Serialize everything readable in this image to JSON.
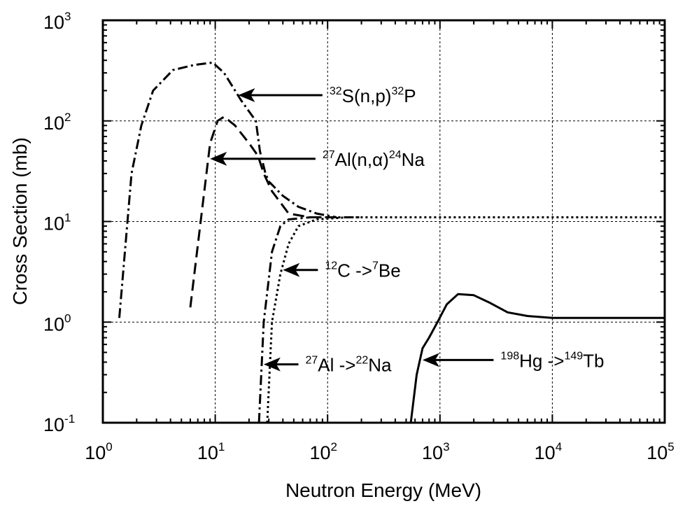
{
  "chart_data": {
    "type": "line",
    "xlabel": "Neutron Energy (MeV)",
    "ylabel": "Cross Section (mb)",
    "xscale": "log",
    "yscale": "log",
    "xlim": [
      1,
      100000
    ],
    "ylim": [
      0.1,
      1000
    ],
    "grid": true,
    "x_ticks": [
      {
        "base": "10",
        "exp": "0",
        "value": 1
      },
      {
        "base": "10",
        "exp": "1",
        "value": 10
      },
      {
        "base": "10",
        "exp": "2",
        "value": 100
      },
      {
        "base": "10",
        "exp": "3",
        "value": 1000
      },
      {
        "base": "10",
        "exp": "4",
        "value": 10000
      },
      {
        "base": "10",
        "exp": "5",
        "value": 100000
      }
    ],
    "y_ticks": [
      {
        "base": "10",
        "exp": "-1",
        "value": 0.1
      },
      {
        "base": "10",
        "exp": "0",
        "value": 1
      },
      {
        "base": "10",
        "exp": "1",
        "value": 10
      },
      {
        "base": "10",
        "exp": "2",
        "value": 100
      },
      {
        "base": "10",
        "exp": "3",
        "value": 1000
      }
    ],
    "series": [
      {
        "id": "s32",
        "dash": "dashdot",
        "points": [
          [
            1.4,
            1.1
          ],
          [
            1.8,
            30
          ],
          [
            2.2,
            90
          ],
          [
            2.8,
            200
          ],
          [
            4.2,
            320
          ],
          [
            6.5,
            360
          ],
          [
            9.5,
            380
          ],
          [
            12,
            300
          ],
          [
            17,
            160
          ],
          [
            23,
            100
          ],
          [
            25,
            50
          ],
          [
            28,
            30
          ],
          [
            30,
            25
          ],
          [
            40,
            18
          ],
          [
            55,
            14
          ],
          [
            80,
            12
          ],
          [
            120,
            11
          ]
        ]
      },
      {
        "id": "al24",
        "dash": "dash",
        "points": [
          [
            6,
            1.4
          ],
          [
            8,
            20
          ],
          [
            9,
            60
          ],
          [
            10.5,
            100
          ],
          [
            12,
            110
          ],
          [
            15,
            90
          ],
          [
            20,
            60
          ],
          [
            24,
            45
          ],
          [
            27,
            30
          ],
          [
            32,
            20
          ],
          [
            45,
            12
          ],
          [
            70,
            11
          ],
          [
            100,
            11
          ]
        ]
      },
      {
        "id": "c7",
        "dash": "dot",
        "points": [
          [
            29,
            0.1
          ],
          [
            32,
            1
          ],
          [
            38,
            3
          ],
          [
            45,
            6
          ],
          [
            55,
            9
          ],
          [
            80,
            10.5
          ],
          [
            150,
            11
          ],
          [
            1000,
            11
          ],
          [
            10000,
            11
          ],
          [
            100000,
            11
          ]
        ]
      },
      {
        "id": "al22",
        "dash": "dashdot",
        "points": [
          [
            24.5,
            0.1
          ],
          [
            27,
            1
          ],
          [
            32,
            5
          ],
          [
            38,
            9
          ],
          [
            45,
            10.5
          ],
          [
            70,
            11
          ],
          [
            200,
            11
          ]
        ]
      },
      {
        "id": "hg149",
        "dash": "solid",
        "points": [
          [
            550,
            0.1
          ],
          [
            620,
            0.3
          ],
          [
            700,
            0.55
          ],
          [
            800,
            0.7
          ],
          [
            950,
            1.0
          ],
          [
            1150,
            1.5
          ],
          [
            1450,
            1.9
          ],
          [
            2000,
            1.85
          ],
          [
            2800,
            1.55
          ],
          [
            4000,
            1.25
          ],
          [
            6000,
            1.15
          ],
          [
            10000,
            1.1
          ],
          [
            100000,
            1.1
          ]
        ]
      }
    ],
    "annotations": [
      {
        "id": "s32",
        "parts": [
          {
            "t": "32",
            "sup": true
          },
          {
            "t": "S(n,p)",
            "sup": false
          },
          {
            "t": "32",
            "sup": true
          },
          {
            "t": "P",
            "sup": false
          }
        ],
        "x_tip": 16,
        "y_tip": 180,
        "x_tail": 90,
        "y_tail": 180
      },
      {
        "id": "al24",
        "parts": [
          {
            "t": "27",
            "sup": true
          },
          {
            "t": "Al(n,",
            "sup": false
          },
          {
            "t": "α",
            "sup": false
          },
          {
            "t": ")",
            "sup": false
          },
          {
            "t": "24",
            "sup": true
          },
          {
            "t": "Na",
            "sup": false
          }
        ],
        "x_tip": 9,
        "y_tip": 42,
        "x_tail": 78,
        "y_tail": 42
      },
      {
        "id": "c7",
        "parts": [
          {
            "t": "12",
            "sup": true
          },
          {
            "t": "C ->",
            "sup": false
          },
          {
            "t": "7",
            "sup": true
          },
          {
            "t": "Be",
            "sup": false
          }
        ],
        "x_tip": 40,
        "y_tip": 3.3,
        "x_tail": 82,
        "y_tail": 3.3
      },
      {
        "id": "al22",
        "parts": [
          {
            "t": "27",
            "sup": true
          },
          {
            "t": "Al ->",
            "sup": false
          },
          {
            "t": "22",
            "sup": true
          },
          {
            "t": "Na",
            "sup": false
          }
        ],
        "x_tip": 27,
        "y_tip": 0.38,
        "x_tail": 55,
        "y_tail": 0.38
      },
      {
        "id": "hg149",
        "parts": [
          {
            "t": "198",
            "sup": true
          },
          {
            "t": "Hg ->",
            "sup": false
          },
          {
            "t": "149",
            "sup": true
          },
          {
            "t": "Tb",
            "sup": false
          }
        ],
        "x_tip": 700,
        "y_tip": 0.42,
        "x_tail": 3000,
        "y_tail": 0.42
      }
    ]
  }
}
